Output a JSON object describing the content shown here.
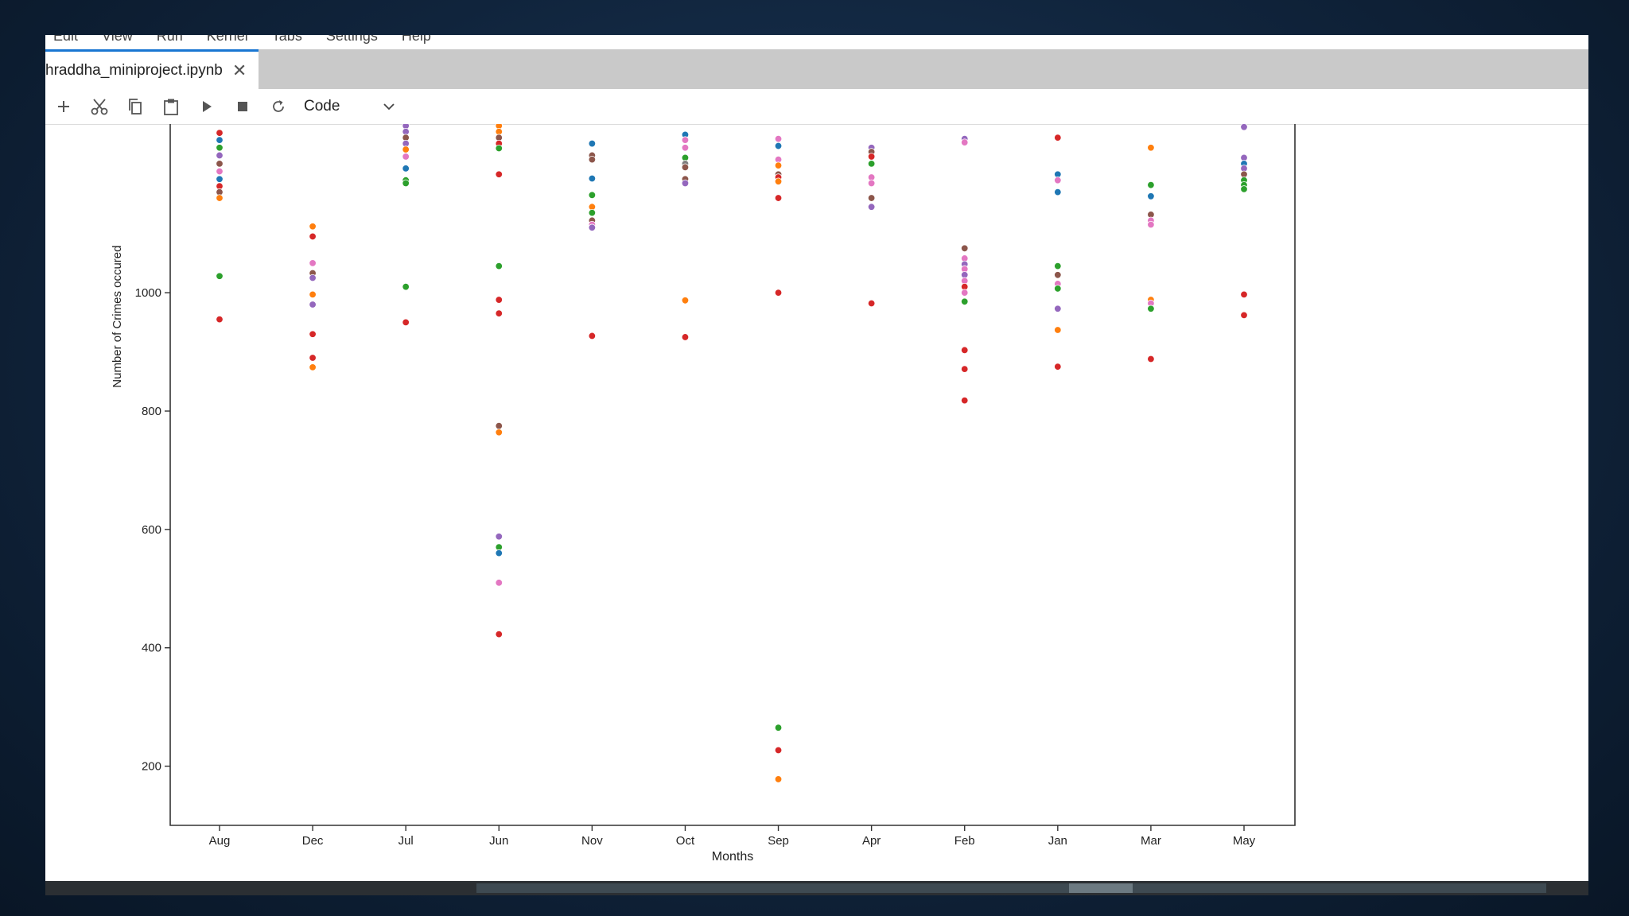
{
  "menu": [
    "Edit",
    "View",
    "Run",
    "Kernel",
    "Tabs",
    "Settings",
    "Help"
  ],
  "tab": {
    "filename": "hraddha_miniproject.ipynb",
    "close_glyph": "✕"
  },
  "toolbar": {
    "cell_type": "Code"
  },
  "icons": [
    "add-icon",
    "cut-icon",
    "copy-icon",
    "paste-icon",
    "run-icon",
    "stop-icon",
    "restart-icon",
    "chevron-down-icon"
  ],
  "chart_data": {
    "type": "scatter",
    "xlabel": "Months",
    "ylabel": "Number of Crimes occured",
    "categories": [
      "Aug",
      "Dec",
      "Jul",
      "Jun",
      "Nov",
      "Oct",
      "Sep",
      "Apr",
      "Feb",
      "Jan",
      "Mar",
      "May"
    ],
    "yticks": [
      200,
      400,
      600,
      800,
      1000
    ],
    "ylim": [
      100,
      1285
    ],
    "colors": {
      "blue": "#1f77b4",
      "orange": "#ff7f0e",
      "green": "#2ca02c",
      "red": "#d62728",
      "purple": "#9467bd",
      "brown": "#8c564b",
      "pink": "#e377c2",
      "gray": "#7f7f7f",
      "olive": "#bcbd22",
      "cyan": "#17becf"
    },
    "points": [
      {
        "x": "Aug",
        "y": 1270,
        "c": "red"
      },
      {
        "x": "Aug",
        "y": 1258,
        "c": "blue"
      },
      {
        "x": "Aug",
        "y": 1245,
        "c": "green"
      },
      {
        "x": "Aug",
        "y": 1232,
        "c": "purple"
      },
      {
        "x": "Aug",
        "y": 1218,
        "c": "brown"
      },
      {
        "x": "Aug",
        "y": 1205,
        "c": "pink"
      },
      {
        "x": "Aug",
        "y": 1192,
        "c": "blue"
      },
      {
        "x": "Aug",
        "y": 1180,
        "c": "red"
      },
      {
        "x": "Aug",
        "y": 1170,
        "c": "brown"
      },
      {
        "x": "Aug",
        "y": 1160,
        "c": "orange"
      },
      {
        "x": "Aug",
        "y": 1028,
        "c": "green"
      },
      {
        "x": "Aug",
        "y": 955,
        "c": "red"
      },
      {
        "x": "Dec",
        "y": 1112,
        "c": "orange"
      },
      {
        "x": "Dec",
        "y": 1095,
        "c": "red"
      },
      {
        "x": "Dec",
        "y": 1050,
        "c": "pink"
      },
      {
        "x": "Dec",
        "y": 1033,
        "c": "brown"
      },
      {
        "x": "Dec",
        "y": 1025,
        "c": "purple"
      },
      {
        "x": "Dec",
        "y": 997,
        "c": "orange"
      },
      {
        "x": "Dec",
        "y": 980,
        "c": "purple"
      },
      {
        "x": "Dec",
        "y": 930,
        "c": "red"
      },
      {
        "x": "Dec",
        "y": 890,
        "c": "red"
      },
      {
        "x": "Dec",
        "y": 874,
        "c": "orange"
      },
      {
        "x": "Jul",
        "y": 1282,
        "c": "purple"
      },
      {
        "x": "Jul",
        "y": 1272,
        "c": "purple"
      },
      {
        "x": "Jul",
        "y": 1262,
        "c": "brown"
      },
      {
        "x": "Jul",
        "y": 1252,
        "c": "purple"
      },
      {
        "x": "Jul",
        "y": 1242,
        "c": "orange"
      },
      {
        "x": "Jul",
        "y": 1230,
        "c": "pink"
      },
      {
        "x": "Jul",
        "y": 1210,
        "c": "blue"
      },
      {
        "x": "Jul",
        "y": 1190,
        "c": "green"
      },
      {
        "x": "Jul",
        "y": 1185,
        "c": "green"
      },
      {
        "x": "Jul",
        "y": 1010,
        "c": "green"
      },
      {
        "x": "Jul",
        "y": 950,
        "c": "red"
      },
      {
        "x": "Jun",
        "y": 1282,
        "c": "orange"
      },
      {
        "x": "Jun",
        "y": 1272,
        "c": "orange"
      },
      {
        "x": "Jun",
        "y": 1262,
        "c": "brown"
      },
      {
        "x": "Jun",
        "y": 1252,
        "c": "red"
      },
      {
        "x": "Jun",
        "y": 1244,
        "c": "green"
      },
      {
        "x": "Jun",
        "y": 1200,
        "c": "red"
      },
      {
        "x": "Jun",
        "y": 1045,
        "c": "green"
      },
      {
        "x": "Jun",
        "y": 988,
        "c": "red"
      },
      {
        "x": "Jun",
        "y": 965,
        "c": "red"
      },
      {
        "x": "Jun",
        "y": 775,
        "c": "brown"
      },
      {
        "x": "Jun",
        "y": 764,
        "c": "orange"
      },
      {
        "x": "Jun",
        "y": 588,
        "c": "purple"
      },
      {
        "x": "Jun",
        "y": 570,
        "c": "green"
      },
      {
        "x": "Jun",
        "y": 560,
        "c": "blue"
      },
      {
        "x": "Jun",
        "y": 510,
        "c": "pink"
      },
      {
        "x": "Jun",
        "y": 423,
        "c": "red"
      },
      {
        "x": "Nov",
        "y": 1252,
        "c": "blue"
      },
      {
        "x": "Nov",
        "y": 1232,
        "c": "brown"
      },
      {
        "x": "Nov",
        "y": 1225,
        "c": "brown"
      },
      {
        "x": "Nov",
        "y": 1193,
        "c": "blue"
      },
      {
        "x": "Nov",
        "y": 1165,
        "c": "green"
      },
      {
        "x": "Nov",
        "y": 1145,
        "c": "orange"
      },
      {
        "x": "Nov",
        "y": 1135,
        "c": "green"
      },
      {
        "x": "Nov",
        "y": 1122,
        "c": "brown"
      },
      {
        "x": "Nov",
        "y": 1115,
        "c": "pink"
      },
      {
        "x": "Nov",
        "y": 1110,
        "c": "purple"
      },
      {
        "x": "Nov",
        "y": 927,
        "c": "red"
      },
      {
        "x": "Oct",
        "y": 1267,
        "c": "blue"
      },
      {
        "x": "Oct",
        "y": 1258,
        "c": "pink"
      },
      {
        "x": "Oct",
        "y": 1245,
        "c": "pink"
      },
      {
        "x": "Oct",
        "y": 1228,
        "c": "green"
      },
      {
        "x": "Oct",
        "y": 1218,
        "c": "gray"
      },
      {
        "x": "Oct",
        "y": 1212,
        "c": "brown"
      },
      {
        "x": "Oct",
        "y": 1192,
        "c": "brown"
      },
      {
        "x": "Oct",
        "y": 1185,
        "c": "purple"
      },
      {
        "x": "Oct",
        "y": 987,
        "c": "orange"
      },
      {
        "x": "Oct",
        "y": 925,
        "c": "red"
      },
      {
        "x": "Sep",
        "y": 1260,
        "c": "pink"
      },
      {
        "x": "Sep",
        "y": 1248,
        "c": "blue"
      },
      {
        "x": "Sep",
        "y": 1225,
        "c": "pink"
      },
      {
        "x": "Sep",
        "y": 1215,
        "c": "orange"
      },
      {
        "x": "Sep",
        "y": 1200,
        "c": "brown"
      },
      {
        "x": "Sep",
        "y": 1195,
        "c": "red"
      },
      {
        "x": "Sep",
        "y": 1188,
        "c": "orange"
      },
      {
        "x": "Sep",
        "y": 1160,
        "c": "red"
      },
      {
        "x": "Sep",
        "y": 1000,
        "c": "red"
      },
      {
        "x": "Sep",
        "y": 265,
        "c": "green"
      },
      {
        "x": "Sep",
        "y": 227,
        "c": "red"
      },
      {
        "x": "Sep",
        "y": 178,
        "c": "orange"
      },
      {
        "x": "Apr",
        "y": 1245,
        "c": "purple"
      },
      {
        "x": "Apr",
        "y": 1238,
        "c": "brown"
      },
      {
        "x": "Apr",
        "y": 1230,
        "c": "red"
      },
      {
        "x": "Apr",
        "y": 1218,
        "c": "green"
      },
      {
        "x": "Apr",
        "y": 1195,
        "c": "pink"
      },
      {
        "x": "Apr",
        "y": 1185,
        "c": "pink"
      },
      {
        "x": "Apr",
        "y": 1160,
        "c": "brown"
      },
      {
        "x": "Apr",
        "y": 1145,
        "c": "purple"
      },
      {
        "x": "Apr",
        "y": 982,
        "c": "red"
      },
      {
        "x": "Feb",
        "y": 1260,
        "c": "purple"
      },
      {
        "x": "Feb",
        "y": 1254,
        "c": "pink"
      },
      {
        "x": "Feb",
        "y": 1075,
        "c": "brown"
      },
      {
        "x": "Feb",
        "y": 1058,
        "c": "pink"
      },
      {
        "x": "Feb",
        "y": 1048,
        "c": "purple"
      },
      {
        "x": "Feb",
        "y": 1040,
        "c": "pink"
      },
      {
        "x": "Feb",
        "y": 1030,
        "c": "purple"
      },
      {
        "x": "Feb",
        "y": 1020,
        "c": "pink"
      },
      {
        "x": "Feb",
        "y": 1010,
        "c": "red"
      },
      {
        "x": "Feb",
        "y": 1000,
        "c": "pink"
      },
      {
        "x": "Feb",
        "y": 985,
        "c": "green"
      },
      {
        "x": "Feb",
        "y": 903,
        "c": "red"
      },
      {
        "x": "Feb",
        "y": 871,
        "c": "red"
      },
      {
        "x": "Feb",
        "y": 818,
        "c": "red"
      },
      {
        "x": "Jan",
        "y": 1262,
        "c": "red"
      },
      {
        "x": "Jan",
        "y": 1200,
        "c": "blue"
      },
      {
        "x": "Jan",
        "y": 1190,
        "c": "pink"
      },
      {
        "x": "Jan",
        "y": 1170,
        "c": "blue"
      },
      {
        "x": "Jan",
        "y": 1045,
        "c": "green"
      },
      {
        "x": "Jan",
        "y": 1030,
        "c": "brown"
      },
      {
        "x": "Jan",
        "y": 1015,
        "c": "pink"
      },
      {
        "x": "Jan",
        "y": 1007,
        "c": "green"
      },
      {
        "x": "Jan",
        "y": 973,
        "c": "purple"
      },
      {
        "x": "Jan",
        "y": 937,
        "c": "orange"
      },
      {
        "x": "Jan",
        "y": 875,
        "c": "red"
      },
      {
        "x": "Mar",
        "y": 1245,
        "c": "orange"
      },
      {
        "x": "Mar",
        "y": 1182,
        "c": "green"
      },
      {
        "x": "Mar",
        "y": 1163,
        "c": "blue"
      },
      {
        "x": "Mar",
        "y": 1132,
        "c": "brown"
      },
      {
        "x": "Mar",
        "y": 1122,
        "c": "pink"
      },
      {
        "x": "Mar",
        "y": 1115,
        "c": "pink"
      },
      {
        "x": "Mar",
        "y": 988,
        "c": "orange"
      },
      {
        "x": "Mar",
        "y": 982,
        "c": "pink"
      },
      {
        "x": "Mar",
        "y": 973,
        "c": "green"
      },
      {
        "x": "Mar",
        "y": 888,
        "c": "red"
      },
      {
        "x": "May",
        "y": 1280,
        "c": "purple"
      },
      {
        "x": "May",
        "y": 1228,
        "c": "purple"
      },
      {
        "x": "May",
        "y": 1218,
        "c": "blue"
      },
      {
        "x": "May",
        "y": 1210,
        "c": "purple"
      },
      {
        "x": "May",
        "y": 1200,
        "c": "brown"
      },
      {
        "x": "May",
        "y": 1190,
        "c": "green"
      },
      {
        "x": "May",
        "y": 1182,
        "c": "green"
      },
      {
        "x": "May",
        "y": 1175,
        "c": "green"
      },
      {
        "x": "May",
        "y": 997,
        "c": "red"
      },
      {
        "x": "May",
        "y": 962,
        "c": "red"
      }
    ]
  }
}
